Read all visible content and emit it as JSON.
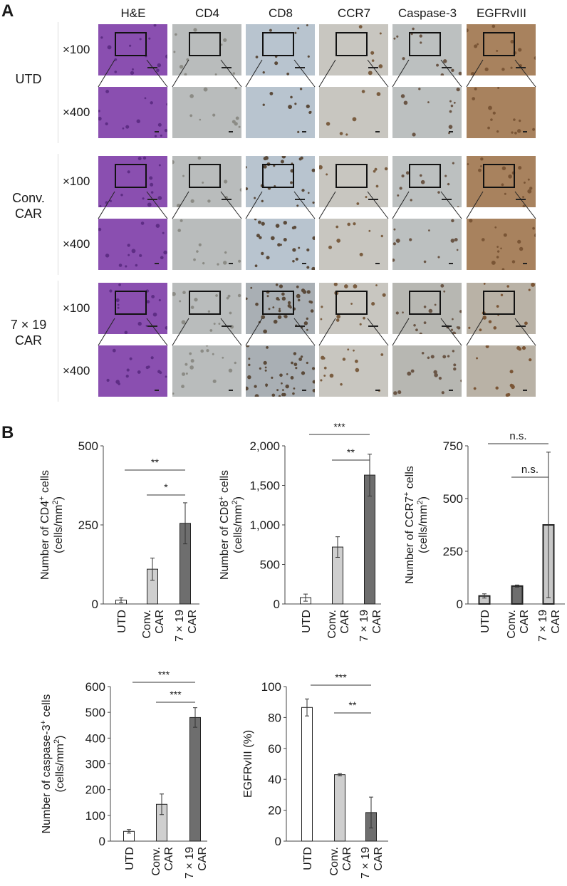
{
  "panel_a": {
    "letter": "A",
    "columns": [
      "H&E",
      "CD4",
      "CD8",
      "CCR7",
      "Caspase-3",
      "EGFRvIII"
    ],
    "rows": [
      {
        "label_line1": "UTD",
        "label_line2": "",
        "mag_low": "×100",
        "mag_high": "×400"
      },
      {
        "label_line1": "Conv.",
        "label_line2": "CAR",
        "mag_low": "×100",
        "mag_high": "×400"
      },
      {
        "label_line1": "7 × 19",
        "label_line2": "CAR",
        "mag_low": "×100",
        "mag_high": "×400"
      }
    ],
    "stain_colors": {
      "H&E": "#8a4fb0",
      "CD4": "#b9bcbc",
      "CD8": "#b8c4cf",
      "CCR7": "#c8c6c0",
      "Caspase-3": "#bcc0c0",
      "EGFRvIII": "#a8825e"
    }
  },
  "panel_b": {
    "letter": "B"
  },
  "chart_data": [
    {
      "type": "bar",
      "title": "",
      "ylabel": "Number of CD4+ cells (cells/mm2)",
      "ylabel_line1": "Number of CD4",
      "ylabel_sup1": "+",
      "ylabel_tail1": " cells",
      "ylabel_line2": "(cells/mm",
      "ylabel_sup2": "2",
      "ylabel_tail2": ")",
      "categories": [
        "UTD",
        "Conv. CAR",
        "7 × 19 CAR"
      ],
      "values": [
        12,
        110,
        255
      ],
      "errors": [
        8,
        35,
        65
      ],
      "bar_colors": [
        "#ffffff",
        "#cfcfcf",
        "#6e6e6e"
      ],
      "ylim": [
        0,
        500
      ],
      "yticks": [
        "0",
        "250",
        "500"
      ],
      "significance": [
        {
          "from": 0,
          "to": 2,
          "label": "**"
        },
        {
          "from": 1,
          "to": 2,
          "label": "*"
        }
      ]
    },
    {
      "type": "bar",
      "ylabel": "Number of CD8+ cells (cells/mm2)",
      "ylabel_line1": "Number of CD8",
      "ylabel_sup1": "+",
      "ylabel_tail1": " cells",
      "ylabel_line2": "(cells/mm",
      "ylabel_sup2": "2",
      "ylabel_tail2": ")",
      "categories": [
        "UTD",
        "Conv. CAR",
        "7 × 19 CAR"
      ],
      "values": [
        80,
        720,
        1630
      ],
      "errors": [
        45,
        130,
        265
      ],
      "bar_colors": [
        "#ffffff",
        "#cfcfcf",
        "#6e6e6e"
      ],
      "ylim": [
        0,
        2000
      ],
      "yticks": [
        "0",
        "500",
        "1,000",
        "1,500",
        "2,000"
      ],
      "significance": [
        {
          "from": 0,
          "to": 2,
          "label": "***"
        },
        {
          "from": 1,
          "to": 2,
          "label": "**"
        }
      ]
    },
    {
      "type": "bar",
      "ylabel": "Number of CCR7+ cells (cells/mm2)",
      "ylabel_line1": "Number of CCR7",
      "ylabel_sup1": "+",
      "ylabel_tail1": " cells",
      "ylabel_line2": "(cells/mm",
      "ylabel_sup2": "2",
      "ylabel_tail2": ")",
      "categories": [
        "UTD",
        "Conv. CAR",
        "7 × 19 CAR"
      ],
      "values": [
        38,
        85,
        375
      ],
      "errors": [
        10,
        5,
        345
      ],
      "bar_colors": [
        "#c8c8c8",
        "#6e6e6e",
        "#c8c8c8"
      ],
      "ylim": [
        0,
        750
      ],
      "yticks": [
        "0",
        "250",
        "500",
        "750"
      ],
      "significance": [
        {
          "from": 0,
          "to": 2,
          "label": "n.s."
        },
        {
          "from": 1,
          "to": 2,
          "label": "n.s."
        }
      ]
    },
    {
      "type": "bar",
      "ylabel": "Number of caspase-3+ cells (cells/mm2)",
      "ylabel_line1": "Number of caspase-3",
      "ylabel_sup1": "+",
      "ylabel_tail1": " cells",
      "ylabel_line2": "(cells/mm",
      "ylabel_sup2": "2",
      "ylabel_tail2": ")",
      "categories": [
        "UTD",
        "Conv. CAR",
        "7 × 19 CAR"
      ],
      "values": [
        38,
        143,
        480
      ],
      "errors": [
        7,
        40,
        38
      ],
      "bar_colors": [
        "#ffffff",
        "#cfcfcf",
        "#6e6e6e"
      ],
      "ylim": [
        0,
        600
      ],
      "yticks": [
        "0",
        "100",
        "200",
        "300",
        "400",
        "500",
        "600"
      ],
      "significance": [
        {
          "from": 0,
          "to": 2,
          "label": "***"
        },
        {
          "from": 1,
          "to": 2,
          "label": "***"
        }
      ]
    },
    {
      "type": "bar",
      "ylabel": "EGFRvIII (%)",
      "ylabel_line1": "EGFRvIII (%)",
      "ylabel_sup1": "",
      "ylabel_tail1": "",
      "ylabel_line2": "",
      "ylabel_sup2": "",
      "ylabel_tail2": "",
      "categories": [
        "UTD",
        "Conv. CAR",
        "7 × 19 CAR"
      ],
      "values": [
        86.5,
        43,
        18.5
      ],
      "errors": [
        5.5,
        0.7,
        10
      ],
      "bar_colors": [
        "#ffffff",
        "#cfcfcf",
        "#6e6e6e"
      ],
      "ylim": [
        0,
        100
      ],
      "yticks": [
        "0",
        "20",
        "40",
        "60",
        "80",
        "100"
      ],
      "significance": [
        {
          "from": 0,
          "to": 2,
          "label": "***"
        },
        {
          "from": 1,
          "to": 2,
          "label": "**"
        }
      ]
    }
  ],
  "category_labels": {
    "utd": "UTD",
    "conv_line1": "Conv.",
    "conv_line2": "CAR",
    "car719_line1": "7 × 19",
    "car719_line2": "CAR"
  }
}
